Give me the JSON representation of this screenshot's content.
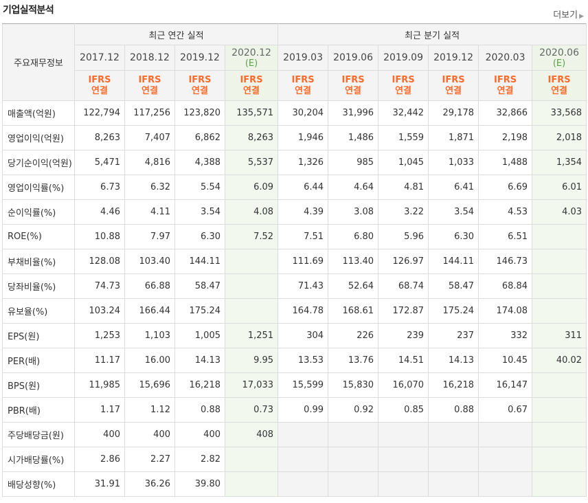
{
  "section_title": "기업실적분석",
  "more_label": "더보기",
  "annual_header": "최근 연간 실적",
  "quarter_header": "최근 분기 실적",
  "item_header": "주요재무정보",
  "periods": [
    {
      "date": "2017.12",
      "est": "",
      "acc1": "IFRS",
      "acc2": "연결"
    },
    {
      "date": "2018.12",
      "est": "",
      "acc1": "IFRS",
      "acc2": "연결"
    },
    {
      "date": "2019.12",
      "est": "",
      "acc1": "IFRS",
      "acc2": "연결"
    },
    {
      "date": "2020.12",
      "est": "(E)",
      "acc1": "IFRS",
      "acc2": "연결"
    },
    {
      "date": "2019.03",
      "est": "",
      "acc1": "IFRS",
      "acc2": "연결"
    },
    {
      "date": "2019.06",
      "est": "",
      "acc1": "IFRS",
      "acc2": "연결"
    },
    {
      "date": "2019.09",
      "est": "",
      "acc1": "IFRS",
      "acc2": "연결"
    },
    {
      "date": "2019.12",
      "est": "",
      "acc1": "IFRS",
      "acc2": "연결"
    },
    {
      "date": "2020.03",
      "est": "",
      "acc1": "IFRS",
      "acc2": "연결"
    },
    {
      "date": "2020.06",
      "est": "(E)",
      "acc1": "IFRS",
      "acc2": "연결"
    }
  ],
  "rows": [
    {
      "label": "매출액(억원)",
      "values": [
        "122,794",
        "117,256",
        "123,820",
        "135,571",
        "30,204",
        "31,996",
        "32,442",
        "29,178",
        "32,866",
        "33,568"
      ]
    },
    {
      "label": "영업이익(억원)",
      "values": [
        "8,263",
        "7,407",
        "6,862",
        "8,263",
        "1,946",
        "1,486",
        "1,559",
        "1,871",
        "2,198",
        "2,018"
      ]
    },
    {
      "label": "당기순이익(억원)",
      "values": [
        "5,471",
        "4,816",
        "4,388",
        "5,537",
        "1,326",
        "985",
        "1,045",
        "1,033",
        "1,488",
        "1,354"
      ]
    },
    {
      "label": "영업이익률(%)",
      "values": [
        "6.73",
        "6.32",
        "5.54",
        "6.09",
        "6.44",
        "4.64",
        "4.81",
        "6.41",
        "6.69",
        "6.01"
      ]
    },
    {
      "label": "순이익률(%)",
      "values": [
        "4.46",
        "4.11",
        "3.54",
        "4.08",
        "4.39",
        "3.08",
        "3.22",
        "3.54",
        "4.53",
        "4.03"
      ]
    },
    {
      "label": "ROE(%)",
      "values": [
        "10.88",
        "7.97",
        "6.30",
        "7.52",
        "7.51",
        "6.80",
        "5.96",
        "6.30",
        "6.51",
        ""
      ]
    },
    {
      "label": "부채비율(%)",
      "values": [
        "128.08",
        "103.40",
        "144.11",
        "",
        "111.69",
        "113.40",
        "126.97",
        "144.11",
        "146.73",
        ""
      ]
    },
    {
      "label": "당좌비율(%)",
      "values": [
        "74.73",
        "66.88",
        "58.47",
        "",
        "71.43",
        "52.64",
        "68.74",
        "58.47",
        "68.84",
        ""
      ]
    },
    {
      "label": "유보율(%)",
      "values": [
        "103.24",
        "166.44",
        "175.24",
        "",
        "164.78",
        "168.61",
        "172.87",
        "175.24",
        "174.08",
        ""
      ]
    },
    {
      "label": "EPS(원)",
      "values": [
        "1,253",
        "1,103",
        "1,005",
        "1,251",
        "304",
        "226",
        "239",
        "237",
        "332",
        "311"
      ]
    },
    {
      "label": "PER(배)",
      "values": [
        "11.17",
        "16.00",
        "14.13",
        "9.95",
        "13.53",
        "13.76",
        "14.51",
        "14.13",
        "10.45",
        "40.02"
      ]
    },
    {
      "label": "BPS(원)",
      "values": [
        "11,985",
        "15,696",
        "16,218",
        "17,033",
        "15,599",
        "15,830",
        "16,070",
        "16,218",
        "16,147",
        ""
      ]
    },
    {
      "label": "PBR(배)",
      "values": [
        "1.17",
        "1.12",
        "0.88",
        "0.73",
        "0.99",
        "0.92",
        "0.85",
        "0.88",
        "0.67",
        ""
      ]
    },
    {
      "label": "주당배당금(원)",
      "values": [
        "400",
        "400",
        "400",
        "408",
        "",
        "",
        "",
        "",
        "",
        ""
      ]
    },
    {
      "label": "시가배당률(%)",
      "values": [
        "2.86",
        "2.27",
        "2.82",
        "",
        "",
        "",
        "",
        "",
        "",
        ""
      ]
    },
    {
      "label": "배당성향(%)",
      "values": [
        "31.91",
        "36.26",
        "39.80",
        "",
        "",
        "",
        "",
        "",
        "",
        ""
      ]
    }
  ]
}
